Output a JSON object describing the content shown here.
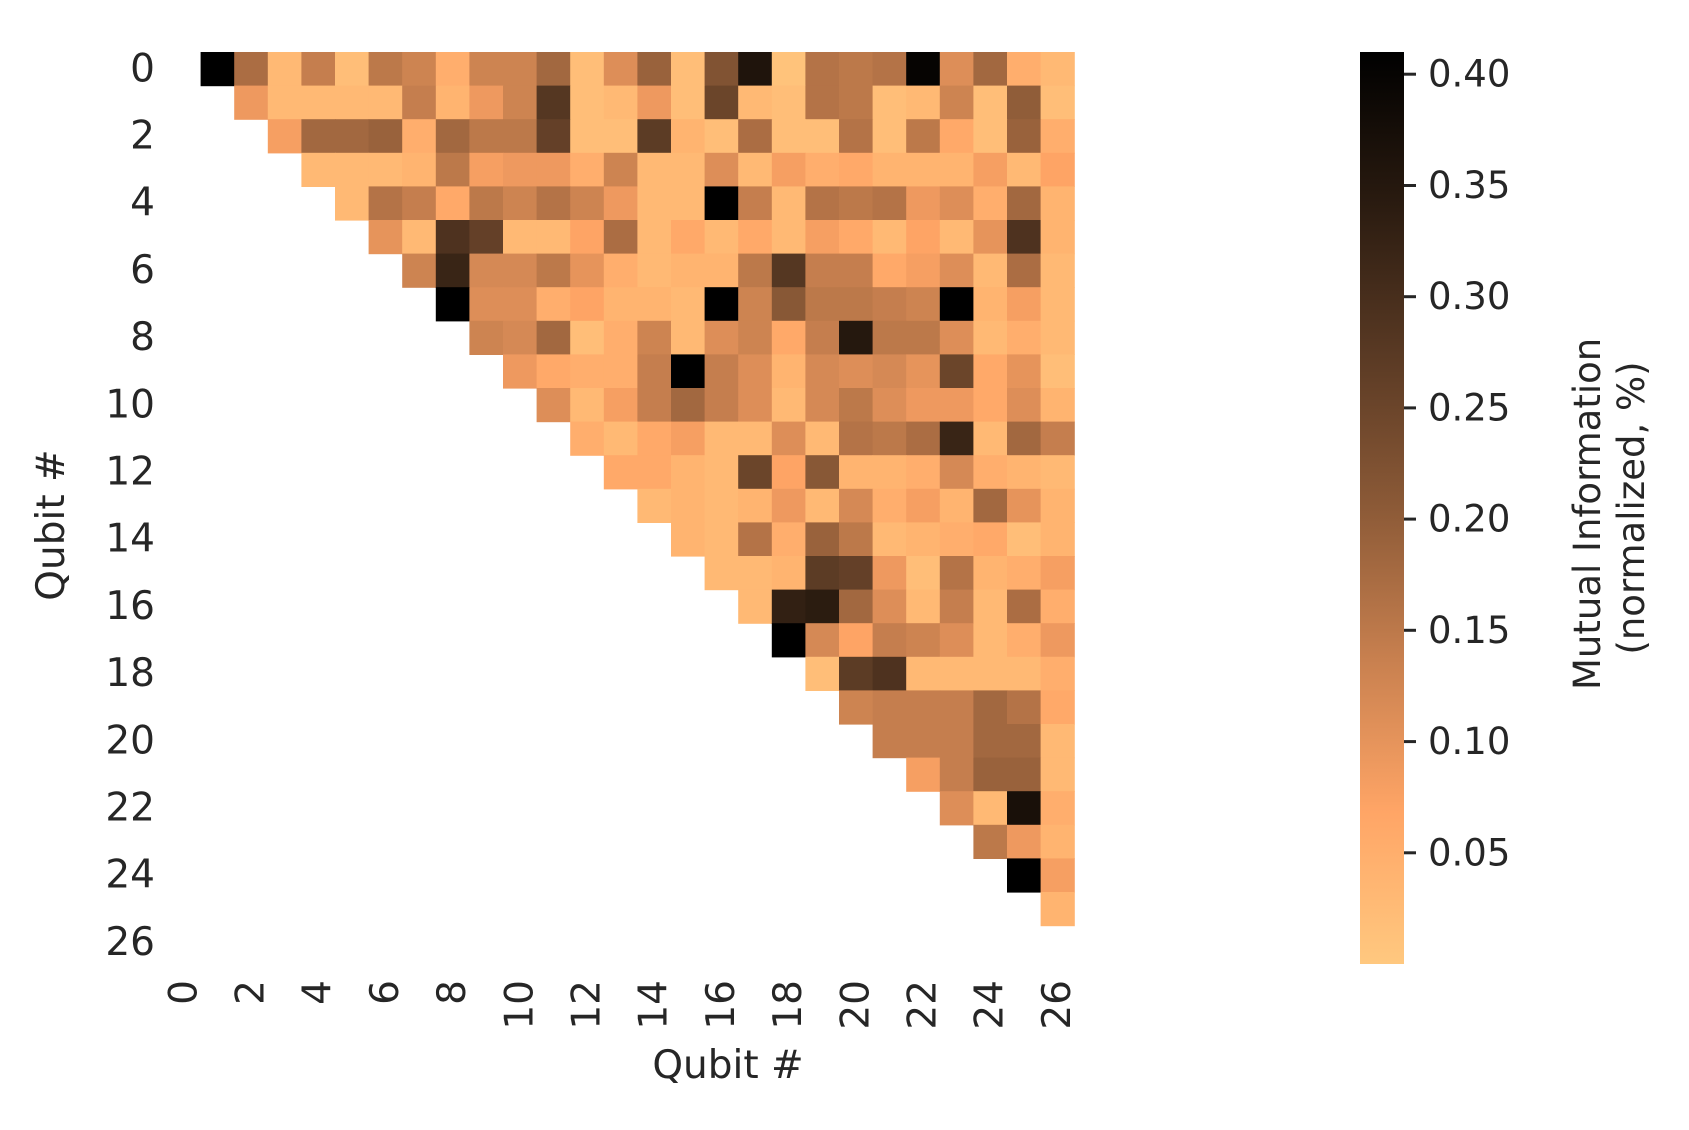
{
  "chart_data": {
    "type": "heatmap",
    "title": "",
    "xlabel": "Qubit #",
    "ylabel": "Qubit #",
    "n": 27,
    "x_ticks": [
      0,
      2,
      4,
      6,
      8,
      10,
      12,
      14,
      16,
      18,
      20,
      22,
      24,
      26
    ],
    "y_ticks": [
      0,
      2,
      4,
      6,
      8,
      10,
      12,
      14,
      16,
      18,
      20,
      22,
      24,
      26
    ],
    "mask": "lower-triangle-and-diagonal",
    "colorbar": {
      "label_lines": [
        "Mutual Information",
        "(normalized, %)"
      ],
      "ticks": [
        "0.05",
        "0.10",
        "0.15",
        "0.20",
        "0.25",
        "0.30",
        "0.35",
        "0.40"
      ],
      "tick_values": [
        0.05,
        0.1,
        0.15,
        0.2,
        0.25,
        0.3,
        0.35,
        0.4
      ],
      "vmin": 0.0,
      "vmax": 0.41,
      "colormap": "copper_r",
      "stops": [
        "#ffc87f",
        "#ffa566",
        "#c8804f",
        "#8c5a37",
        "#5a3a24",
        "#2a1b10",
        "#000000"
      ]
    },
    "rows": [
      [
        0.41,
        0.17,
        0.03,
        0.14,
        0.02,
        0.15,
        0.13,
        0.05,
        0.13,
        0.13,
        0.18,
        0.02,
        0.11,
        0.19,
        0.02,
        0.22,
        0.36,
        0.01,
        0.16,
        0.15,
        0.16,
        0.4,
        0.11,
        0.18,
        0.05,
        0.03
      ],
      [
        0.09,
        0.03,
        0.03,
        0.03,
        0.03,
        0.14,
        0.04,
        0.09,
        0.13,
        0.28,
        0.02,
        0.03,
        0.09,
        0.02,
        0.25,
        0.03,
        0.02,
        0.16,
        0.15,
        0.02,
        0.03,
        0.13,
        0.02,
        0.2,
        0.02
      ],
      [
        0.08,
        0.18,
        0.18,
        0.19,
        0.05,
        0.18,
        0.15,
        0.15,
        0.26,
        0.02,
        0.02,
        0.27,
        0.04,
        0.02,
        0.17,
        0.02,
        0.02,
        0.16,
        0.02,
        0.15,
        0.06,
        0.02,
        0.19,
        0.05
      ],
      [
        0.03,
        0.03,
        0.03,
        0.04,
        0.15,
        0.08,
        0.09,
        0.09,
        0.05,
        0.13,
        0.03,
        0.03,
        0.11,
        0.03,
        0.08,
        0.05,
        0.06,
        0.04,
        0.04,
        0.04,
        0.08,
        0.03,
        0.07
      ],
      [
        0.03,
        0.16,
        0.14,
        0.06,
        0.15,
        0.13,
        0.16,
        0.13,
        0.09,
        0.03,
        0.03,
        0.41,
        0.14,
        0.03,
        0.16,
        0.15,
        0.16,
        0.09,
        0.11,
        0.05,
        0.18,
        0.04
      ],
      [
        0.1,
        0.03,
        0.29,
        0.26,
        0.03,
        0.03,
        0.07,
        0.17,
        0.03,
        0.06,
        0.03,
        0.06,
        0.03,
        0.08,
        0.06,
        0.03,
        0.07,
        0.03,
        0.1,
        0.29,
        0.04
      ],
      [
        0.13,
        0.32,
        0.12,
        0.12,
        0.15,
        0.1,
        0.05,
        0.03,
        0.04,
        0.04,
        0.15,
        0.28,
        0.14,
        0.14,
        0.06,
        0.08,
        0.11,
        0.03,
        0.17,
        0.03
      ],
      [
        0.41,
        0.11,
        0.11,
        0.05,
        0.07,
        0.04,
        0.04,
        0.03,
        0.41,
        0.13,
        0.21,
        0.15,
        0.15,
        0.14,
        0.13,
        0.41,
        0.04,
        0.08,
        0.03
      ],
      [
        0.13,
        0.12,
        0.18,
        0.02,
        0.05,
        0.13,
        0.03,
        0.11,
        0.13,
        0.06,
        0.14,
        0.35,
        0.15,
        0.15,
        0.11,
        0.03,
        0.05,
        0.03
      ],
      [
        0.09,
        0.06,
        0.05,
        0.05,
        0.14,
        0.41,
        0.14,
        0.11,
        0.04,
        0.12,
        0.11,
        0.12,
        0.1,
        0.25,
        0.06,
        0.1,
        0.02
      ],
      [
        0.11,
        0.03,
        0.08,
        0.14,
        0.18,
        0.14,
        0.11,
        0.03,
        0.12,
        0.15,
        0.11,
        0.09,
        0.09,
        0.06,
        0.11,
        0.04
      ],
      [
        0.05,
        0.03,
        0.06,
        0.08,
        0.03,
        0.03,
        0.11,
        0.03,
        0.16,
        0.15,
        0.17,
        0.32,
        0.03,
        0.18,
        0.14
      ],
      [
        0.06,
        0.06,
        0.04,
        0.03,
        0.25,
        0.07,
        0.21,
        0.04,
        0.04,
        0.05,
        0.12,
        0.05,
        0.04,
        0.03
      ],
      [
        0.03,
        0.04,
        0.03,
        0.04,
        0.09,
        0.03,
        0.12,
        0.05,
        0.08,
        0.04,
        0.18,
        0.1,
        0.04
      ],
      [
        0.04,
        0.03,
        0.16,
        0.05,
        0.19,
        0.15,
        0.03,
        0.04,
        0.05,
        0.06,
        0.02,
        0.04
      ],
      [
        0.03,
        0.03,
        0.04,
        0.27,
        0.26,
        0.09,
        0.02,
        0.16,
        0.04,
        0.05,
        0.08
      ],
      [
        0.03,
        0.33,
        0.34,
        0.18,
        0.11,
        0.03,
        0.14,
        0.03,
        0.17,
        0.05
      ],
      [
        0.41,
        0.12,
        0.07,
        0.14,
        0.13,
        0.11,
        0.03,
        0.05,
        0.09
      ],
      [
        0.02,
        0.27,
        0.29,
        0.03,
        0.03,
        0.03,
        0.03,
        0.05
      ],
      [
        0.13,
        0.14,
        0.14,
        0.14,
        0.18,
        0.16,
        0.06
      ],
      [
        0.14,
        0.14,
        0.14,
        0.18,
        0.18,
        0.03
      ],
      [
        0.08,
        0.14,
        0.19,
        0.19,
        0.03
      ],
      [
        0.11,
        0.03,
        0.37,
        0.05
      ],
      [
        0.15,
        0.09,
        0.04
      ],
      [
        0.41,
        0.08
      ],
      [
        0.04
      ]
    ]
  }
}
